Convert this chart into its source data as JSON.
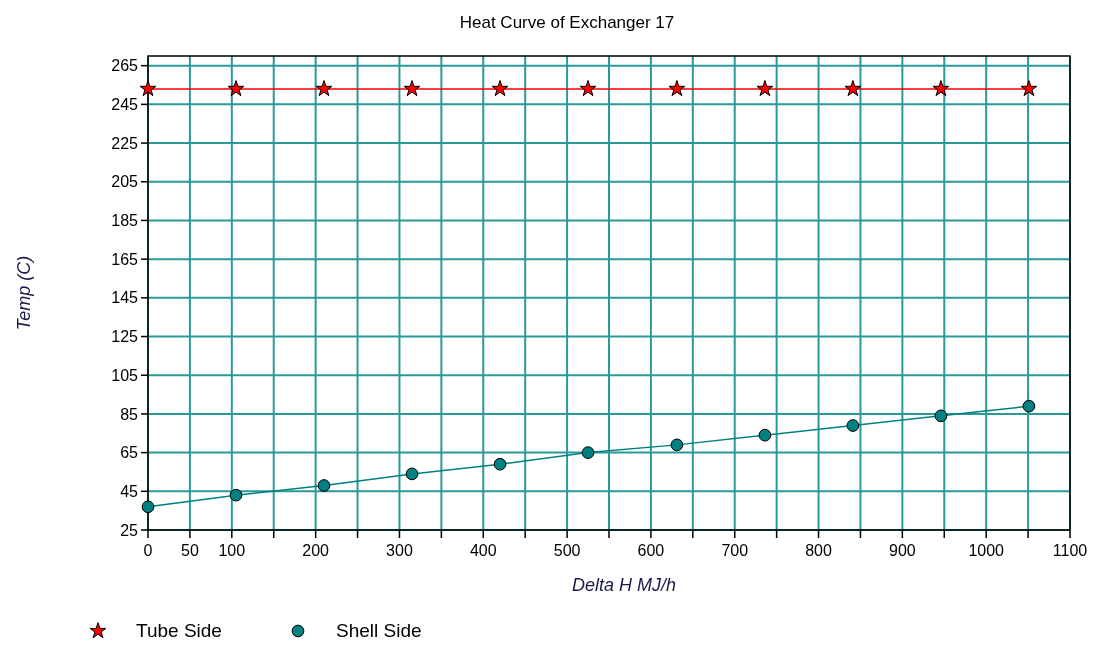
{
  "chart_data": {
    "type": "line",
    "title": "Heat Curve of Exchanger 17",
    "xlabel": "Delta H MJ/h",
    "ylabel": "Temp (C)",
    "x": [
      0,
      105,
      210,
      315,
      420,
      525,
      631,
      736,
      841,
      946,
      1051
    ],
    "series": [
      {
        "name": "Tube Side",
        "color": "#ff0000",
        "marker": "star",
        "values": [
          253,
          253,
          253,
          253,
          253,
          253,
          253,
          253,
          253,
          253,
          253
        ]
      },
      {
        "name": "Shell Side",
        "color": "#008080",
        "marker": "circle",
        "values": [
          37,
          43,
          48,
          54,
          59,
          65,
          69,
          74,
          79,
          84,
          89
        ]
      }
    ],
    "xlim": [
      0,
      1100
    ],
    "xticks": [
      0,
      50,
      100,
      {
        "value": 150,
        "label": null
      },
      200,
      {
        "value": 250,
        "label": null
      },
      300,
      {
        "value": 350,
        "label": null
      },
      400,
      {
        "value": 450,
        "label": null
      },
      500,
      {
        "value": 550,
        "label": null
      },
      600,
      {
        "value": 650,
        "label": null
      },
      700,
      {
        "value": 750,
        "label": null
      },
      800,
      {
        "value": 850,
        "label": null
      },
      900,
      {
        "value": 950,
        "label": null
      },
      1000,
      {
        "value": 1050,
        "label": null
      },
      1100
    ],
    "ylim": [
      25,
      270
    ],
    "yticks": [
      25,
      45,
      65,
      85,
      105,
      125,
      145,
      165,
      185,
      205,
      225,
      245,
      265
    ],
    "grid": true,
    "legend": "bottom left",
    "line_style": "solid"
  }
}
